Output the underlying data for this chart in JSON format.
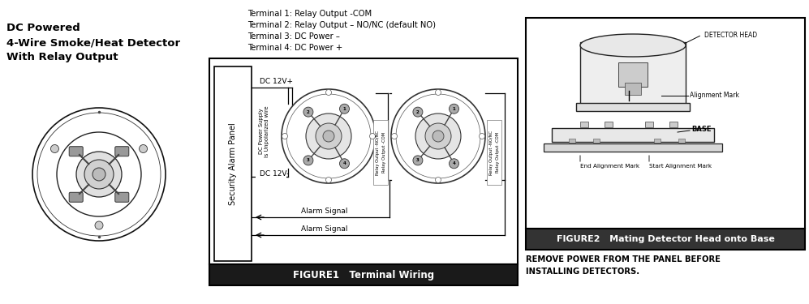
{
  "bg_color": "#ffffff",
  "title_left_lines": [
    "DC Powered",
    "4-Wire Smoke/Heat Detector",
    "With Relay Output"
  ],
  "terminal_lines": [
    "Terminal 1: Relay Output -COM",
    "Terminal 2: Relay Output – NO/NC (default NO)",
    "Terminal 3: DC Power –",
    "Terminal 4: DC Power +"
  ],
  "figure1_caption": "FIGURE1   Terminal Wiring",
  "figure2_caption": "FIGURE2   Mating Detector Head onto Base",
  "alarm_signal": "Alarm Signal",
  "dc12v_plus": "DC 12V+",
  "dc12v_minus": "DC 12V-",
  "panel_label": "Security Alarm Panel",
  "dc_power_label": "DC Power Supply\nis Unpolarized wire",
  "relay_label1": "Relay Output -NO/NC",
  "relay_label2": "Relay Output -COM",
  "detector_head_label": "DETECTOR HEAD",
  "base_label": "BASE",
  "alignment_mark": "Alignment Mark",
  "end_alignment_mark": "End Alignment Mark",
  "start_alignment_mark": "Start Alignment Mark",
  "warning_text": "REMOVE POWER FROM THE PANEL BEFORE\nINSTALLING DETECTORS.",
  "fig1_caption_bg": "#1a1a1a",
  "fig2_caption_bg": "#333333"
}
